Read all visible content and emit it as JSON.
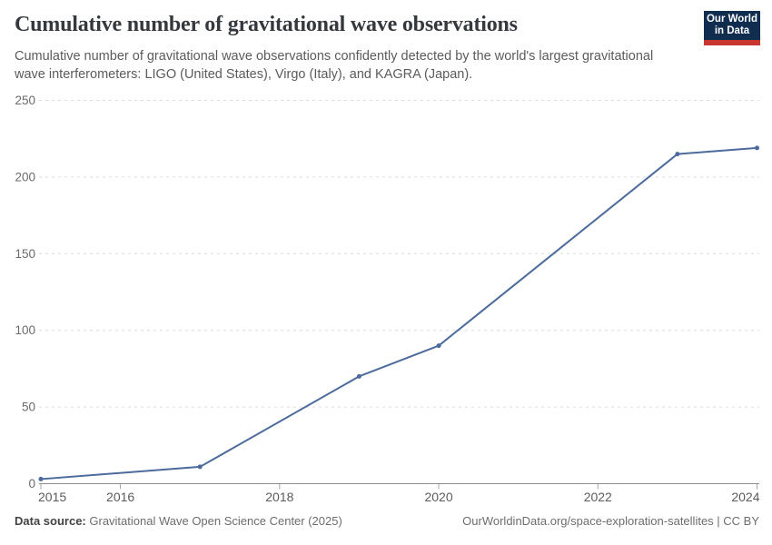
{
  "header": {
    "title": "Cumulative number of gravitational wave observations",
    "subtitle_lines": [
      "Cumulative number of gravitational wave observations confidently detected by the world's largest gravitational",
      "wave interferometers: LIGO (United States), Virgo (Italy), and KAGRA (Japan)."
    ],
    "logo": {
      "line1": "Our World",
      "line2": "in Data"
    }
  },
  "chart_data": {
    "type": "line",
    "title": "Cumulative number of gravitational wave observations",
    "x": [
      2015,
      2017,
      2019,
      2020,
      2023,
      2024
    ],
    "values": [
      3,
      11,
      70,
      90,
      215,
      219
    ],
    "xlabel": "",
    "ylabel": "",
    "xlim": [
      2015,
      2024
    ],
    "ylim": [
      0,
      250
    ],
    "y_ticks": [
      0,
      50,
      100,
      150,
      200,
      250
    ],
    "x_tick_labels": [
      2015,
      2016,
      2018,
      2020,
      2022,
      2024
    ],
    "grid": "horizontal-dashed",
    "legend": "none",
    "line_color": "#4c6a9c",
    "marker": "circle"
  },
  "footer": {
    "source_label": "Data source:",
    "source_text": "Gravitational Wave Open Science Center (2025)",
    "rights_text": "OurWorldinData.org/space-exploration-satellites | CC BY"
  },
  "colors": {
    "line": "#4c6a9c",
    "logo_navy": "#102d50",
    "logo_red": "#c7372d",
    "grid": "#dcdcdc",
    "axis": "#8c8c8c",
    "tick_label": "#6b6b6b",
    "x_tick_label": "#5b5b5b"
  }
}
